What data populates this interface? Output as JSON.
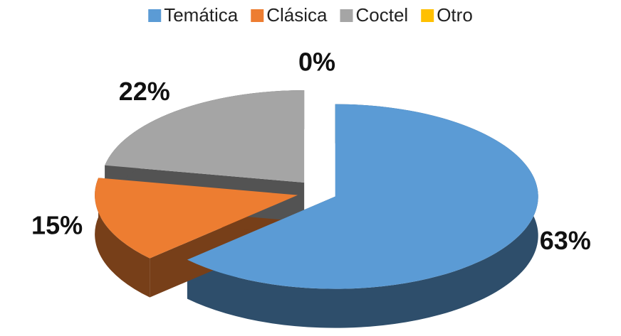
{
  "chart_data": {
    "type": "pie",
    "categories": [
      "Temática",
      "Clásica",
      "Coctel",
      "Otro"
    ],
    "values": [
      63,
      15,
      22,
      0
    ],
    "value_labels": [
      "63%",
      "15%",
      "22%",
      "0%"
    ],
    "colors": [
      "#5b9bd5",
      "#ed7d31",
      "#a5a5a5",
      "#ffc000"
    ],
    "legend": "top"
  }
}
